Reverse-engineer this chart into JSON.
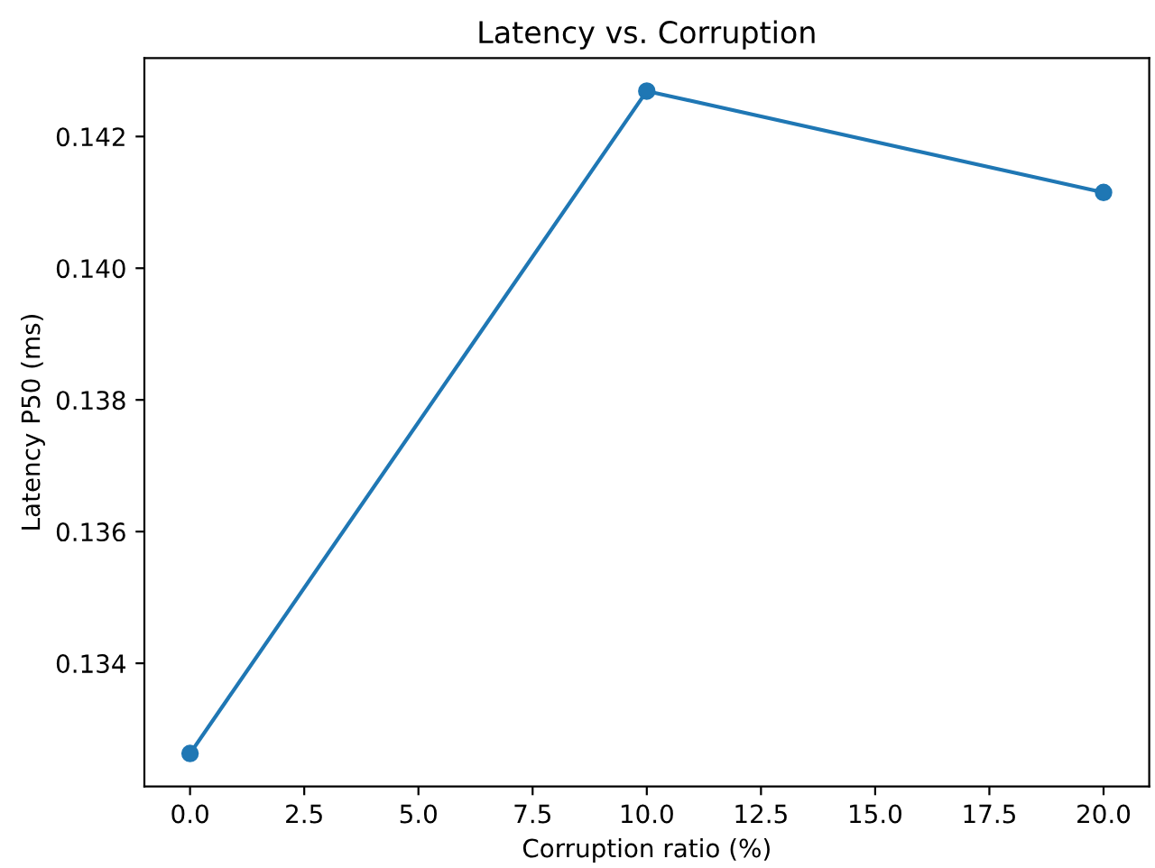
{
  "chart_data": {
    "type": "line",
    "title": "Latency vs. Corruption",
    "xlabel": "Corruption ratio (%)",
    "ylabel": "Latency P50 (ms)",
    "x": [
      0,
      10,
      20
    ],
    "series": [
      {
        "color": "#1f77b4",
        "values": [
          0.13263,
          0.14269,
          0.14115
        ]
      }
    ],
    "marker": "circle",
    "line_style": "solid",
    "grid": false,
    "legend": false,
    "xlim": [
      -1,
      21
    ],
    "xticks": [
      {
        "value": 0,
        "label": "0.0"
      },
      {
        "value": 2.5,
        "label": "2.5"
      },
      {
        "value": 5,
        "label": "5.0"
      },
      {
        "value": 7.5,
        "label": "7.5"
      },
      {
        "value": 10,
        "label": "10.0"
      },
      {
        "value": 12.5,
        "label": "12.5"
      },
      {
        "value": 15,
        "label": "15.0"
      },
      {
        "value": 17.5,
        "label": "17.5"
      },
      {
        "value": 20,
        "label": "20.0"
      }
    ],
    "ylim": [
      0.13213,
      0.14319
    ],
    "yticks": [
      0.134,
      0.136,
      0.138,
      {
        "value": 0.14,
        "label": "0.140"
      },
      0.142
    ]
  }
}
